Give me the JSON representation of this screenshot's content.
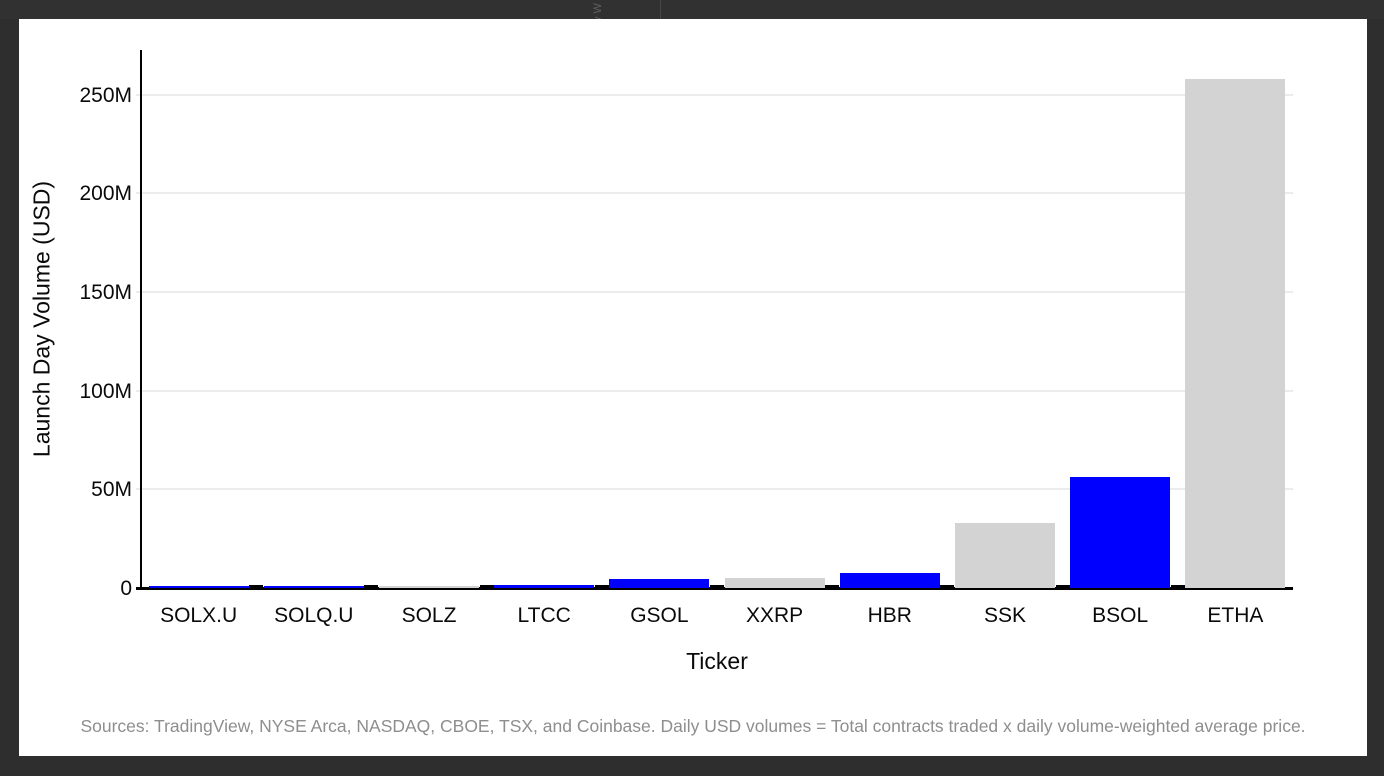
{
  "chrome": {
    "page_bg": "#2e2e2e",
    "top_strip_bg": "#313131",
    "top_strip_divider_color": "#474747",
    "artifact_text": "y W"
  },
  "chart_data": {
    "type": "bar",
    "title": "",
    "xlabel": "Ticker",
    "ylabel": "Launch Day Volume (USD)",
    "unit": "USD millions",
    "categories": [
      "SOLX.U",
      "SOLQ.U",
      "SOLZ",
      "LTCC",
      "GSOL",
      "XXRP",
      "HBR",
      "SSK",
      "BSOL",
      "ETHA"
    ],
    "values": [
      0.3,
      0.5,
      1.2,
      1.6,
      4.4,
      5.0,
      7.6,
      33,
      56,
      258
    ],
    "bar_colors": [
      "#0000ff",
      "#0000ff",
      "#d3d3d3",
      "#0000ff",
      "#0000ff",
      "#d3d3d3",
      "#0000ff",
      "#d3d3d3",
      "#0000ff",
      "#d3d3d3"
    ],
    "accent_blue": "#0000ff",
    "accent_gray": "#d3d3d3",
    "y_ticks": {
      "values": [
        0,
        50,
        100,
        150,
        200,
        250
      ],
      "labels": [
        "0",
        "50M",
        "100M",
        "150M",
        "200M",
        "250M"
      ]
    },
    "ylim": [
      0,
      272
    ],
    "grid": "horizontal",
    "legend": "none",
    "footnote": "Sources: TradingView, NYSE Arca, NASDAQ, CBOE, TSX, and Coinbase. Daily USD volumes = Total contracts traded x daily volume-weighted average price."
  }
}
